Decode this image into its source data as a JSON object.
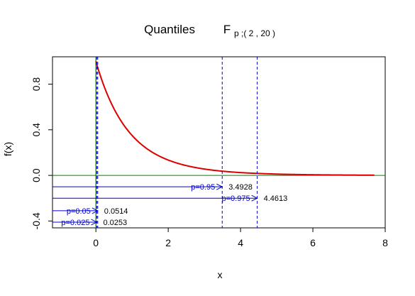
{
  "chart_data": {
    "type": "line",
    "title": "Quantiles",
    "title_symbol": "F",
    "title_subscript": "p ;( 2 , 20 )",
    "xlabel": "x",
    "ylabel": "f(x)",
    "xlim": [
      -1.2,
      8.0
    ],
    "ylim": [
      -0.46,
      1.04
    ],
    "x_ticks": [
      0,
      2,
      4,
      6,
      8
    ],
    "y_ticks": [
      -0.4,
      0.0,
      0.4,
      0.8
    ],
    "x_tick_labels": [
      "0",
      "2",
      "4",
      "6",
      "8"
    ],
    "y_tick_labels": [
      "-0.4",
      "0.0",
      "0.4",
      "0.8"
    ],
    "distribution": {
      "name": "F",
      "df1": 2,
      "df2": 20,
      "x_max": 7.7
    },
    "colors": {
      "density": "#dd0000",
      "baseline": "#008000",
      "quantile": "#0000cc",
      "text": "#000000"
    },
    "quantiles": [
      {
        "label": "p=0.95",
        "value": "3.4928",
        "x": 3.4928,
        "y": -0.1
      },
      {
        "label": "p=0.975",
        "value": "4.4613",
        "x": 4.4613,
        "y": -0.2
      },
      {
        "label": "p=0.05",
        "value": "0.0514",
        "x": 0.0514,
        "y": -0.31
      },
      {
        "label": "p=0.025",
        "value": "0.0253",
        "x": 0.0253,
        "y": -0.41
      }
    ]
  }
}
